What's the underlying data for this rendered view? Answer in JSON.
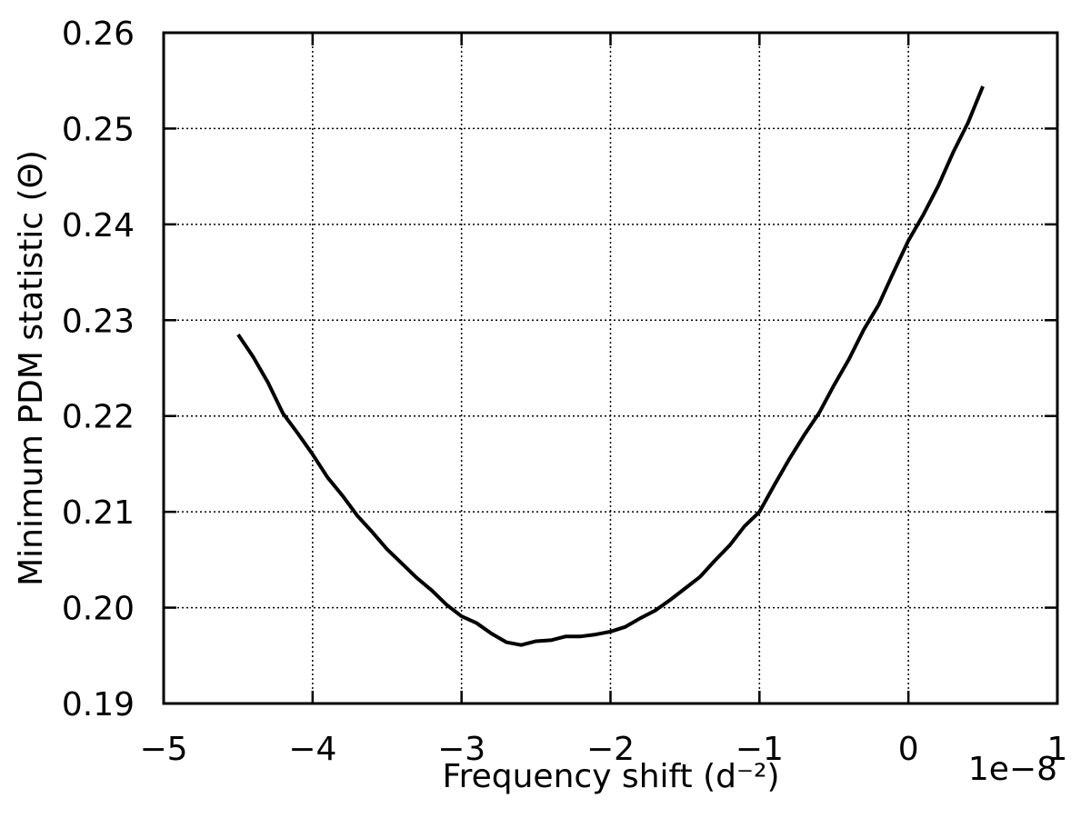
{
  "chart_data": {
    "type": "line",
    "x_label": "Frequency shift (d⁻²)",
    "y_label": "Minimum PDM statistic (Θ)",
    "x_offset_label": "1e−8",
    "x": [
      -4.5,
      -4.4,
      -4.3,
      -4.2,
      -4.1,
      -4.0,
      -3.9,
      -3.8,
      -3.7,
      -3.6,
      -3.5,
      -3.4,
      -3.3,
      -3.2,
      -3.1,
      -3.0,
      -2.9,
      -2.8,
      -2.7,
      -2.6,
      -2.5,
      -2.4,
      -2.3,
      -2.2,
      -2.1,
      -2.0,
      -1.9,
      -1.8,
      -1.7,
      -1.6,
      -1.5,
      -1.4,
      -1.3,
      -1.2,
      -1.1,
      -1.0,
      -0.9,
      -0.8,
      -0.7,
      -0.6,
      -0.5,
      -0.4,
      -0.3,
      -0.2,
      -0.1,
      0.0,
      0.1,
      0.2,
      0.3,
      0.4,
      0.5
    ],
    "series": [
      {
        "color": "#000000",
        "values": [
          0.2285,
          0.2262,
          0.2235,
          0.2203,
          0.2182,
          0.216,
          0.2136,
          0.2117,
          0.2096,
          0.2079,
          0.2061,
          0.2046,
          0.2031,
          0.2018,
          0.2003,
          0.1991,
          0.1984,
          0.1973,
          0.1964,
          0.1961,
          0.1965,
          0.1966,
          0.197,
          0.197,
          0.1972,
          0.1975,
          0.198,
          0.1989,
          0.1997,
          0.2008,
          0.202,
          0.2032,
          0.2049,
          0.2065,
          0.2085,
          0.21,
          0.2128,
          0.2155,
          0.218,
          0.2203,
          0.2232,
          0.2259,
          0.229,
          0.2316,
          0.235,
          0.2383,
          0.241,
          0.244,
          0.2475,
          0.2506,
          0.2544
        ]
      }
    ],
    "xlim": [
      -5,
      1
    ],
    "xticks": [
      {
        "value": -5,
        "label": "−5"
      },
      {
        "value": -4,
        "label": "−4"
      },
      {
        "value": -3,
        "label": "−3"
      },
      {
        "value": -2,
        "label": "−2"
      },
      {
        "value": -1,
        "label": "−1"
      },
      0,
      1
    ],
    "ylim": [
      0.19,
      0.26
    ],
    "yticks": [
      0.19,
      {
        "value": 0.2,
        "label": "0.20"
      },
      0.21,
      0.22,
      0.23,
      0.24,
      0.25,
      0.26
    ],
    "grid": true
  }
}
